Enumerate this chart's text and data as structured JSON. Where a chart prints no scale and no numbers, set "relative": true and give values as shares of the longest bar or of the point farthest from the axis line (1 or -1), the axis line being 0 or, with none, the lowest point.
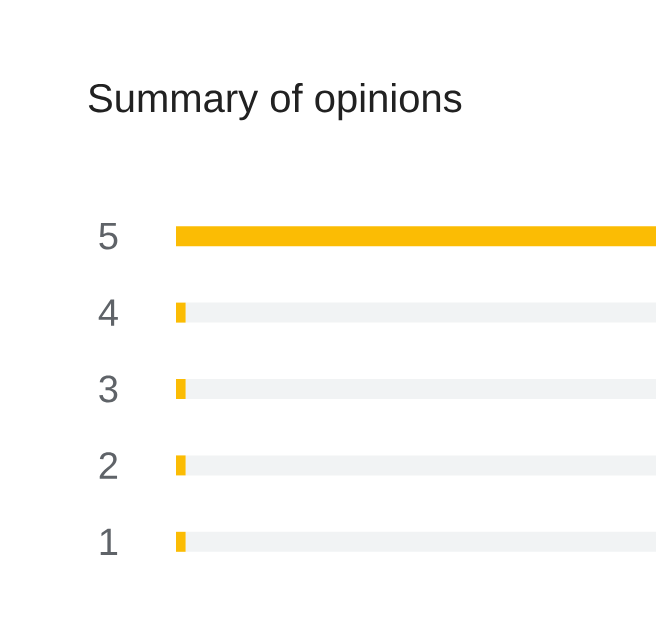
{
  "chart_data": {
    "type": "bar",
    "title": "Summary of opinions",
    "orientation": "horizontal",
    "stacked": true,
    "relative": true,
    "tick_labels": "y",
    "categories": [
      "5",
      "4",
      "3",
      "2",
      "1"
    ],
    "series": [
      {
        "color": "#fbbc04",
        "values": [
          1,
          0.02,
          0.02,
          0.02,
          0.02
        ]
      },
      {
        "color": "#f1f3f4",
        "values": [
          0,
          0.98,
          0.98,
          0.98,
          0.98
        ]
      }
    ]
  }
}
